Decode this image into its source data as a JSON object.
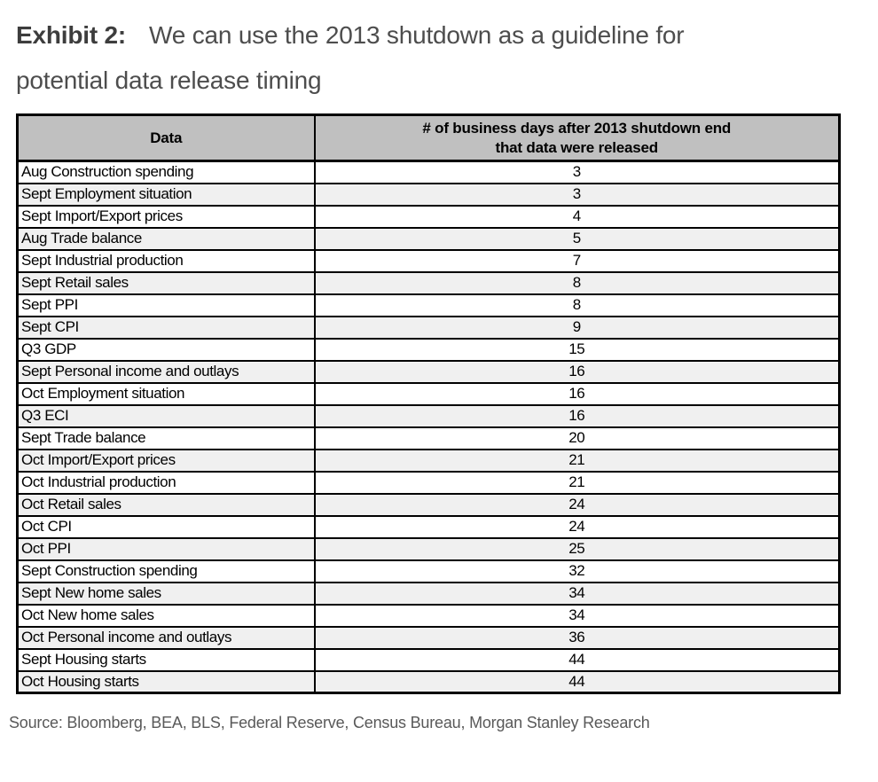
{
  "title": {
    "exhibit_label": "Exhibit 2:",
    "text_line1": "We can use the 2013 shutdown as a guideline for",
    "text_line2": "potential data release timing"
  },
  "table": {
    "columns": [
      {
        "label": "Data"
      },
      {
        "label_line1": "# of business days after 2013 shutdown end",
        "label_line2": "that data were released"
      }
    ],
    "rows": [
      {
        "label": "Aug Construction spending",
        "days": "3"
      },
      {
        "label": "Sept Employment situation",
        "days": "3"
      },
      {
        "label": "Sept Import/Export prices",
        "days": "4"
      },
      {
        "label": "Aug Trade balance",
        "days": "5"
      },
      {
        "label": "Sept Industrial production",
        "days": "7"
      },
      {
        "label": "Sept Retail sales",
        "days": "8"
      },
      {
        "label": "Sept PPI",
        "days": "8"
      },
      {
        "label": "Sept CPI",
        "days": "9"
      },
      {
        "label": "Q3 GDP",
        "days": "15"
      },
      {
        "label": "Sept Personal income and outlays",
        "days": "16"
      },
      {
        "label": "Oct Employment situation",
        "days": "16"
      },
      {
        "label": "Q3 ECI",
        "days": "16"
      },
      {
        "label": "Sept Trade balance",
        "days": "20"
      },
      {
        "label": "Oct Import/Export prices",
        "days": "21"
      },
      {
        "label": "Oct Industrial production",
        "days": "21"
      },
      {
        "label": "Oct Retail sales",
        "days": "24"
      },
      {
        "label": "Oct CPI",
        "days": "24"
      },
      {
        "label": "Oct PPI",
        "days": "25"
      },
      {
        "label": "Sept Construction spending",
        "days": "32"
      },
      {
        "label": "Sept New home sales",
        "days": "34"
      },
      {
        "label": "Oct New home sales",
        "days": "34"
      },
      {
        "label": "Oct Personal income and outlays",
        "days": "36"
      },
      {
        "label": "Sept Housing starts",
        "days": "44"
      },
      {
        "label": "Oct Housing starts",
        "days": "44"
      }
    ]
  },
  "source": "Source: Bloomberg, BEA, BLS, Federal Reserve, Census Bureau, Morgan Stanley Research",
  "colors": {
    "header_bg": "#c0c0c0",
    "alt_row_bg": "#f0f0f0",
    "border": "#000000",
    "title_bold_text": "#3d3d3d",
    "title_text": "#4d4d4d",
    "source_text": "#595959"
  },
  "chart_data": {
    "type": "table",
    "title": "Exhibit 2: We can use the 2013 shutdown as a guideline for potential data release timing",
    "columns": [
      "Data",
      "# of business days after 2013 shutdown end that data were released"
    ],
    "categories": [
      "Aug Construction spending",
      "Sept Employment situation",
      "Sept Import/Export prices",
      "Aug Trade balance",
      "Sept Industrial production",
      "Sept Retail sales",
      "Sept PPI",
      "Sept CPI",
      "Q3 GDP",
      "Sept Personal income and outlays",
      "Oct Employment situation",
      "Q3 ECI",
      "Sept Trade balance",
      "Oct Import/Export prices",
      "Oct Industrial production",
      "Oct Retail sales",
      "Oct CPI",
      "Oct PPI",
      "Sept Construction spending",
      "Sept New home sales",
      "Oct New home sales",
      "Oct Personal income and outlays",
      "Sept Housing starts",
      "Oct Housing starts"
    ],
    "values": [
      3,
      3,
      4,
      5,
      7,
      8,
      8,
      9,
      15,
      16,
      16,
      16,
      20,
      21,
      21,
      24,
      24,
      25,
      32,
      34,
      34,
      36,
      44,
      44
    ]
  }
}
